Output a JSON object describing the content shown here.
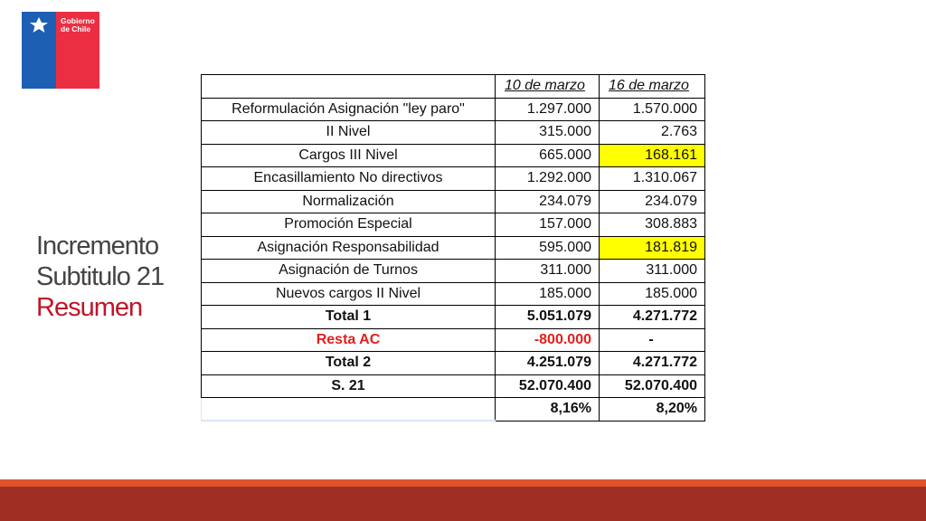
{
  "logo": {
    "text": "Gobierno\nde Chile",
    "icon": "chile-coat-of-arms-icon"
  },
  "title": {
    "line1": "Incremento",
    "line2": "Subtitulo 21",
    "line3": "Resumen"
  },
  "table": {
    "headers": [
      "",
      "10 de marzo",
      "16 de marzo"
    ],
    "rows": [
      {
        "label": "Reformulación Asignación \"ley paro\"",
        "v1": "1.297.000",
        "v2": "1.570.000"
      },
      {
        "label": "II Nivel",
        "v1": "315.000",
        "v2": "2.763"
      },
      {
        "label": "Cargos III Nivel",
        "v1": "665.000",
        "v2": "168.161"
      },
      {
        "label": "Encasillamiento No directivos",
        "v1": "1.292.000",
        "v2": "1.310.067"
      },
      {
        "label": "Normalización",
        "v1": "234.079",
        "v2": "234.079"
      },
      {
        "label": "Promoción Especial",
        "v1": "157.000",
        "v2": "308.883"
      },
      {
        "label": "Asignación Responsabilidad",
        "v1": "595.000",
        "v2": "181.819"
      },
      {
        "label": "Asignación de Turnos",
        "v1": "311.000",
        "v2": "311.000"
      },
      {
        "label": "Nuevos cargos II Nivel",
        "v1": "185.000",
        "v2": "185.000"
      },
      {
        "label": "Total 1",
        "v1": "5.051.079",
        "v2": "4.271.772"
      },
      {
        "label": "Resta AC",
        "v1": "-800.000",
        "v2": "-"
      },
      {
        "label": "Total 2",
        "v1": "4.251.079",
        "v2": "4.271.772"
      },
      {
        "label": "S. 21",
        "v1": "52.070.400",
        "v2": "52.070.400"
      },
      {
        "label": "",
        "v1": "8,16%",
        "v2": "8,20%"
      }
    ]
  },
  "colors": {
    "highlight": "#ffff00",
    "red_text": "#e0201f",
    "title_red": "#c0142a",
    "footer_orange": "#e0522b",
    "footer_dark": "#9e2e22"
  }
}
